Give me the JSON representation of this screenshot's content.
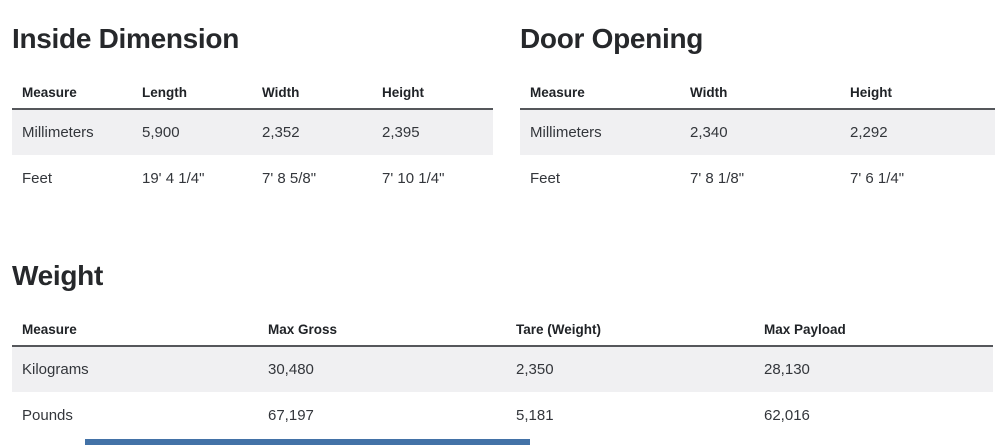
{
  "colors": {
    "heading_text": "#26282b",
    "body_text": "#33363b",
    "column_header_text": "#202327",
    "row_shade": "#f0f0f2",
    "header_rule": "#55575b",
    "bottom_bar_blue": "#4372a7"
  },
  "sections": [
    {
      "title": "Inside Dimension",
      "columns": [
        "Measure",
        "Length",
        "Width",
        "Height"
      ],
      "rows": [
        [
          "Millimeters",
          "5,900",
          "2,352",
          "2,395"
        ],
        [
          "Feet",
          "19' 4 1/4\"",
          "7' 8 5/8\"",
          "7' 10 1/4\""
        ]
      ]
    },
    {
      "title": "Door Opening",
      "columns": [
        "Measure",
        "Width",
        "Height"
      ],
      "rows": [
        [
          "Millimeters",
          "2,340",
          "2,292"
        ],
        [
          "Feet",
          "7' 8 1/8\"",
          "7' 6 1/4\""
        ]
      ]
    },
    {
      "title": "Weight",
      "columns": [
        "Measure",
        "Max Gross",
        "Tare (Weight)",
        "Max Payload"
      ],
      "rows": [
        [
          "Kilograms",
          "30,480",
          "2,350",
          "28,130"
        ],
        [
          "Pounds",
          "67,197",
          "5,181",
          "62,016"
        ]
      ]
    }
  ]
}
